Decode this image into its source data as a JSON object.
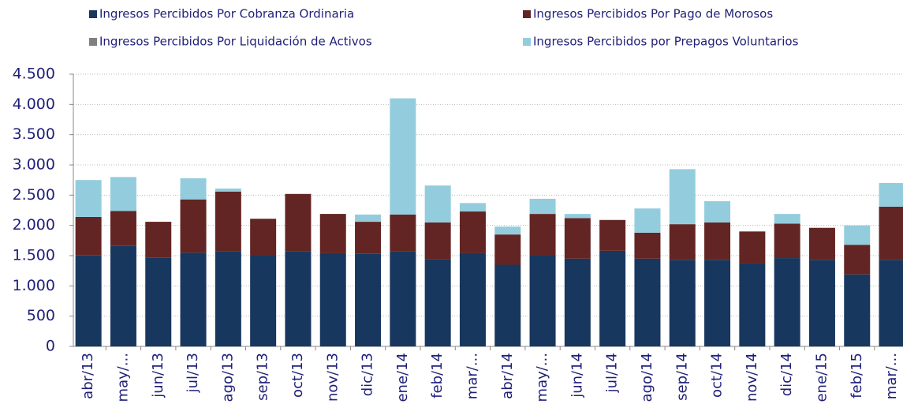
{
  "chart_data": {
    "type": "stacked-bar",
    "categories": [
      "abr/13",
      "may/...",
      "jun/13",
      "jul/13",
      "ago/13",
      "sep/13",
      "oct/13",
      "nov/13",
      "dic/13",
      "ene/14",
      "feb/14",
      "mar/...",
      "abr/14",
      "may/...",
      "jun/14",
      "jul/14",
      "ago/14",
      "sep/14",
      "oct/14",
      "nov/14",
      "dic/14",
      "ene/15",
      "feb/15",
      "mar/..."
    ],
    "series": [
      {
        "name": "Ingresos Percibidos Por Cobranza Ordinaria",
        "color": "#17375e",
        "values": [
          1510,
          1660,
          1470,
          1550,
          1570,
          1500,
          1570,
          1540,
          1530,
          1570,
          1440,
          1540,
          1350,
          1500,
          1450,
          1580,
          1450,
          1430,
          1430,
          1370,
          1460,
          1430,
          1190,
          1430
        ]
      },
      {
        "name": "Ingresos Percibidos Por Pago de Morosos",
        "color": "#632523",
        "values": [
          630,
          580,
          590,
          880,
          990,
          610,
          950,
          650,
          530,
          610,
          610,
          690,
          500,
          690,
          670,
          510,
          430,
          590,
          620,
          530,
          570,
          530,
          490,
          880
        ]
      },
      {
        "name": "Ingresos Percibidos Por Liquidación de Activos",
        "color": "#808080",
        "values": [
          0,
          0,
          0,
          0,
          0,
          0,
          0,
          0,
          0,
          0,
          0,
          0,
          0,
          0,
          0,
          0,
          0,
          0,
          0,
          0,
          0,
          0,
          0,
          0
        ]
      },
      {
        "name": "Ingresos Percibidos por Prepagos Voluntarios",
        "color": "#93cddd",
        "values": [
          610,
          560,
          0,
          350,
          50,
          0,
          0,
          0,
          120,
          1920,
          610,
          140,
          130,
          250,
          70,
          0,
          400,
          910,
          350,
          0,
          160,
          0,
          320,
          390
        ]
      }
    ],
    "ylim": [
      0,
      4500
    ],
    "yticks": [
      0,
      {
        "value": 500,
        "label": "500"
      },
      {
        "value": 1000,
        "label": "1.000"
      },
      {
        "value": 1500,
        "label": "1.500"
      },
      {
        "value": 2000,
        "label": "2.000"
      },
      {
        "value": 2500,
        "label": "2.500"
      },
      {
        "value": 3000,
        "label": "3.000"
      },
      {
        "value": 3500,
        "label": "3.500"
      },
      {
        "value": 4000,
        "label": "4.000"
      },
      {
        "value": 4500,
        "label": "4.500"
      }
    ],
    "grid": true
  }
}
